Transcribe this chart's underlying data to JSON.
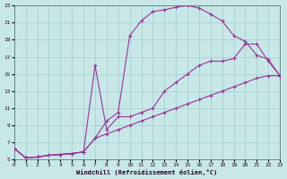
{
  "bg_color": "#c8e8e8",
  "grid_color": "#a0cccc",
  "line_color": "#993399",
  "xlabel": "Windchill (Refroidissement éolien,°C)",
  "xlim": [
    0,
    23
  ],
  "ylim": [
    5,
    23
  ],
  "xticks": [
    0,
    1,
    2,
    3,
    4,
    5,
    6,
    7,
    8,
    9,
    10,
    11,
    12,
    13,
    14,
    15,
    16,
    17,
    18,
    19,
    20,
    21,
    22,
    23
  ],
  "yticks": [
    5,
    7,
    9,
    11,
    13,
    15,
    17,
    19,
    21,
    23
  ],
  "curve1_x": [
    0,
    1,
    2,
    3,
    4,
    5,
    6,
    7,
    8,
    9,
    10,
    11,
    12,
    13,
    14,
    15,
    16,
    17,
    18,
    19,
    20,
    21,
    22,
    23
  ],
  "curve1_y": [
    6.3,
    5.2,
    5.3,
    5.5,
    5.6,
    5.7,
    5.9,
    7.5,
    9.5,
    10.5,
    19.5,
    21.2,
    22.3,
    22.5,
    22.8,
    23.0,
    22.7,
    22.0,
    21.2,
    19.5,
    18.8,
    17.2,
    16.7,
    14.8
  ],
  "curve2_x": [
    0,
    1,
    2,
    3,
    4,
    5,
    6,
    7,
    8,
    9,
    10,
    11,
    12,
    13,
    14,
    15,
    16,
    17,
    18,
    19,
    20,
    21,
    22,
    23
  ],
  "curve2_y": [
    6.3,
    5.2,
    5.3,
    5.5,
    5.6,
    5.7,
    5.9,
    16.0,
    8.5,
    10.0,
    10.0,
    10.5,
    11.0,
    13.0,
    14.0,
    15.0,
    16.0,
    16.5,
    16.5,
    16.8,
    18.5,
    18.5,
    16.5,
    14.8
  ],
  "curve3_x": [
    0,
    1,
    2,
    3,
    4,
    5,
    6,
    7,
    8,
    9,
    10,
    11,
    12,
    13,
    14,
    15,
    16,
    17,
    18,
    19,
    20,
    21,
    22,
    23
  ],
  "curve3_y": [
    6.3,
    5.2,
    5.3,
    5.5,
    5.6,
    5.7,
    5.9,
    7.5,
    8.0,
    8.5,
    9.0,
    9.5,
    10.0,
    10.5,
    11.0,
    11.5,
    12.0,
    12.5,
    13.0,
    13.5,
    14.0,
    14.5,
    14.8,
    14.8
  ]
}
